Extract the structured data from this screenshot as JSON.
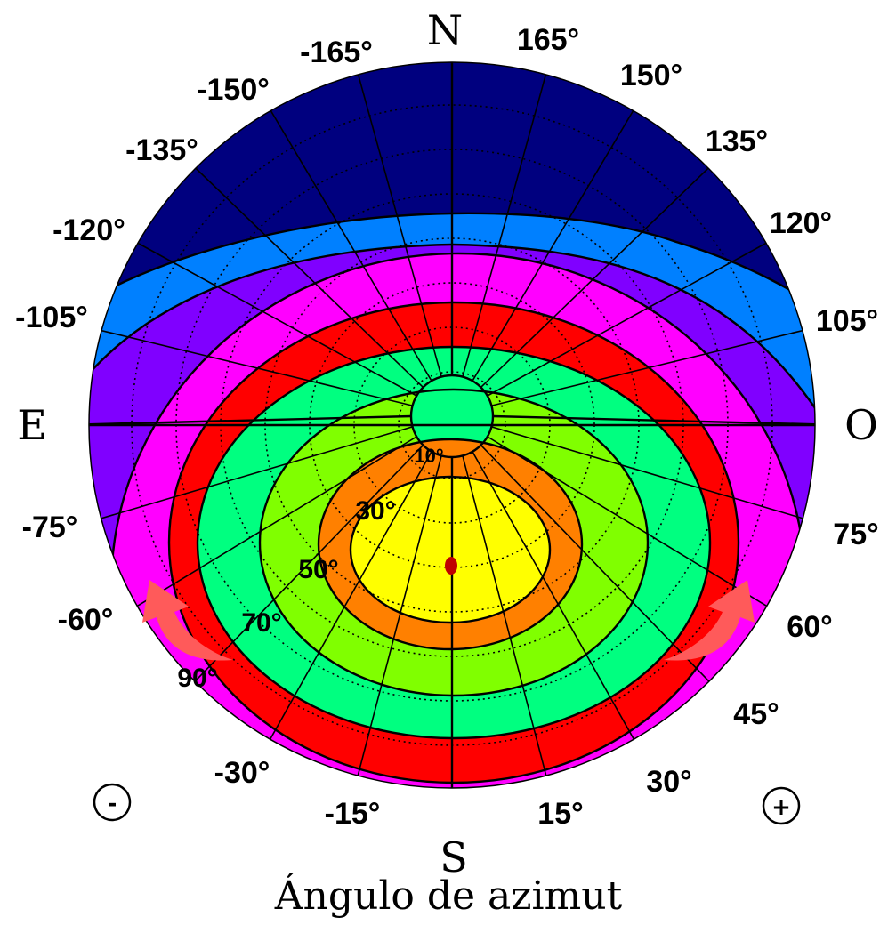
{
  "cardinals": {
    "north": "N",
    "south": "S",
    "east": "E",
    "west": "O"
  },
  "azimuth_labels": [
    "-165°",
    "-150°",
    "-135°",
    "-120°",
    "-105°",
    "-75°",
    "-60°",
    "-30°",
    "-15°",
    "15°",
    "30°",
    "45°",
    "60°",
    "75°",
    "105°",
    "120°",
    "135°",
    "150°",
    "165°"
  ],
  "altitude_labels": [
    "10°",
    "30°",
    "50°",
    "70°",
    "90°"
  ],
  "sign_negative": "-",
  "sign_positive": "+",
  "caption": "Ángulo de azimut",
  "colors": {
    "band_1": "#00007f",
    "band_2": "#0080ff",
    "band_3": "#8000ff",
    "band_4": "#ff00ff",
    "band_5": "#ff0000",
    "band_6": "#00ff80",
    "band_7": "#80ff00",
    "band_8": "#ff8000",
    "band_9": "#ffff00",
    "sun_marker": "#c00000",
    "arrow": "#ff5a5a"
  }
}
